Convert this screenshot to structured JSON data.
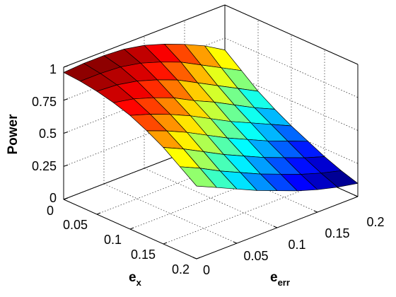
{
  "chart_data": {
    "type": "surface",
    "title": "",
    "xlabel": "e",
    "xlabel_sub": "x",
    "ylabel": "e",
    "ylabel_sub": "err",
    "zlabel": "Power",
    "x_ticks": [
      "0",
      "0.05",
      "0.1",
      "0.15",
      "0.2"
    ],
    "y_ticks": [
      "0",
      "0.05",
      "0.1",
      "0.15",
      "0.2"
    ],
    "z_ticks": [
      "0",
      "0.25",
      "0.5",
      "0.75",
      "1"
    ],
    "xlim": [
      0,
      0.2
    ],
    "ylim": [
      0,
      0.2
    ],
    "zlim": [
      0,
      1
    ],
    "colormap": "jet",
    "grid": true,
    "x": [
      0,
      0.025,
      0.05,
      0.075,
      0.1,
      0.125,
      0.15,
      0.175,
      0.2
    ],
    "y": [
      0,
      0.025,
      0.05,
      0.075,
      0.1,
      0.125,
      0.15,
      0.175,
      0.2
    ],
    "z": [
      [
        0.96,
        0.97,
        0.97,
        0.96,
        0.93,
        0.88,
        0.82,
        0.75,
        0.66
      ],
      [
        0.95,
        0.95,
        0.94,
        0.91,
        0.86,
        0.8,
        0.72,
        0.64,
        0.56
      ],
      [
        0.93,
        0.92,
        0.89,
        0.84,
        0.78,
        0.7,
        0.62,
        0.54,
        0.46
      ],
      [
        0.9,
        0.87,
        0.82,
        0.76,
        0.68,
        0.61,
        0.53,
        0.45,
        0.38
      ],
      [
        0.86,
        0.81,
        0.75,
        0.68,
        0.6,
        0.52,
        0.45,
        0.38,
        0.31
      ],
      [
        0.8,
        0.74,
        0.67,
        0.59,
        0.51,
        0.44,
        0.37,
        0.31,
        0.25
      ],
      [
        0.73,
        0.66,
        0.58,
        0.5,
        0.43,
        0.36,
        0.3,
        0.24,
        0.19
      ],
      [
        0.64,
        0.57,
        0.49,
        0.42,
        0.35,
        0.29,
        0.23,
        0.18,
        0.14
      ],
      [
        0.55,
        0.48,
        0.41,
        0.34,
        0.28,
        0.22,
        0.17,
        0.13,
        0.1
      ]
    ]
  }
}
